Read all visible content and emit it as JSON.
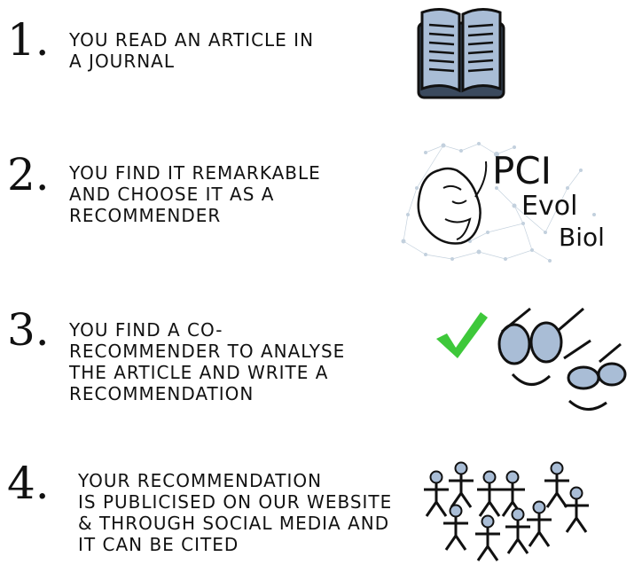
{
  "steps": [
    {
      "number": "1.",
      "text": "YOU READ AN ARTICLE IN\nA JOURNAL"
    },
    {
      "number": "2.",
      "text": "YOU FIND IT REMARKABLE\nAND CHOOSE IT AS A\nRECOMMENDER"
    },
    {
      "number": "3.",
      "text": "YOU FIND A CO-\nRECOMMENDER TO ANALYSE\nTHE ARTICLE AND WRITE A\nRECOMMENDATION"
    },
    {
      "number": "4.",
      "text": "YOUR RECOMMENDATION\nIS PUBLICISED ON OUR WEBSITE\n& THROUGH SOCIAL MEDIA AND\nIT CAN BE CITED"
    }
  ],
  "logo": {
    "line1": "PCI",
    "line2": "Evol",
    "line3": "Biol"
  },
  "colors": {
    "book_fill": "#a9bdd6",
    "check": "#3ec83a",
    "lens": "#a9bdd6",
    "network": "#b8c8d8"
  }
}
